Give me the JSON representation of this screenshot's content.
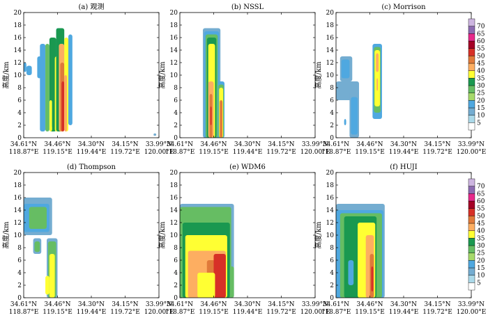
{
  "chart_data": {
    "type": "heatmap",
    "y_axis": {
      "label": "高度/km",
      "range": [
        0,
        20
      ],
      "ticks": [
        0,
        2,
        4,
        6,
        8,
        10,
        12,
        14,
        16,
        18,
        20
      ]
    },
    "x_axis": {
      "ticks_lat": [
        "34.61°N",
        "34.46°N",
        "34.30°N",
        "34.15°N",
        "33.99°N"
      ],
      "ticks_lon": [
        "118.87°E",
        "119.15°E",
        "119.44°E",
        "119.72°E",
        "120.00°E"
      ]
    },
    "colorbar": {
      "levels": [
        5,
        10,
        15,
        20,
        25,
        30,
        35,
        40,
        45,
        50,
        55,
        60,
        65,
        70
      ],
      "colors": [
        "#ffffff",
        "#abd9e9",
        "#74add1",
        "#4fa8e0",
        "#a6d96a",
        "#66bd63",
        "#1a9850",
        "#ffff33",
        "#fdae61",
        "#e07a3a",
        "#d73027",
        "#a50026",
        "#e7298a",
        "#8c6bb1",
        "#cdb5e0"
      ]
    },
    "panels": [
      {
        "title": "(a) 观测",
        "cells": [
          {
            "x": [
              0.0,
              0.02
            ],
            "y": [
              10.5,
              12
            ],
            "level": 15
          },
          {
            "x": [
              0.02,
              0.06
            ],
            "y": [
              10,
              11.5
            ],
            "level": 15
          },
          {
            "x": [
              0.1,
              0.13
            ],
            "y": [
              9.5,
              13
            ],
            "level": 15
          },
          {
            "x": [
              0.12,
              0.16
            ],
            "y": [
              1,
              15
            ],
            "level": 15
          },
          {
            "x": [
              0.16,
              0.19
            ],
            "y": [
              1,
              15
            ],
            "level": 25
          },
          {
            "x": [
              0.19,
              0.24
            ],
            "y": [
              1,
              16
            ],
            "level": 30
          },
          {
            "x": [
              0.24,
              0.26
            ],
            "y": [
              1,
              17.5
            ],
            "level": 15
          },
          {
            "x": [
              0.19,
              0.21
            ],
            "y": [
              1,
              6
            ],
            "level": 35
          },
          {
            "x": [
              0.21,
              0.23
            ],
            "y": [
              1.5,
              12
            ],
            "level": 30
          },
          {
            "x": [
              0.23,
              0.26
            ],
            "y": [
              1,
              13
            ],
            "level": 35
          },
          {
            "x": [
              0.24,
              0.3
            ],
            "y": [
              1,
              17.5
            ],
            "level": 30
          },
          {
            "x": [
              0.26,
              0.3
            ],
            "y": [
              1,
              15
            ],
            "level": 40
          },
          {
            "x": [
              0.27,
              0.3
            ],
            "y": [
              1,
              12
            ],
            "level": 45
          },
          {
            "x": [
              0.28,
              0.3
            ],
            "y": [
              1,
              9
            ],
            "level": 50
          },
          {
            "x": [
              0.3,
              0.33
            ],
            "y": [
              1,
              16
            ],
            "level": 35
          },
          {
            "x": [
              0.3,
              0.32
            ],
            "y": [
              1,
              10
            ],
            "level": 40
          },
          {
            "x": [
              0.33,
              0.36
            ],
            "y": [
              2,
              16.5
            ],
            "level": 15
          },
          {
            "x": [
              0.96,
              0.98
            ],
            "y": [
              0.3,
              0.7
            ],
            "level": 10
          }
        ]
      },
      {
        "title": "(b) NSSL",
        "cells": [
          {
            "x": [
              0.17,
              0.3
            ],
            "y": [
              0,
              17.5
            ],
            "level": 10
          },
          {
            "x": [
              0.18,
              0.29
            ],
            "y": [
              0,
              17
            ],
            "level": 15
          },
          {
            "x": [
              0.19,
              0.28
            ],
            "y": [
              0,
              16.5
            ],
            "level": 25
          },
          {
            "x": [
              0.2,
              0.27
            ],
            "y": [
              0,
              16
            ],
            "level": 30
          },
          {
            "x": [
              0.21,
              0.26
            ],
            "y": [
              0,
              15
            ],
            "level": 35
          },
          {
            "x": [
              0.21,
              0.25
            ],
            "y": [
              0,
              9
            ],
            "level": 40
          },
          {
            "x": [
              0.22,
              0.24
            ],
            "y": [
              0,
              7
            ],
            "level": 45
          },
          {
            "x": [
              0.225,
              0.235
            ],
            "y": [
              2,
              5
            ],
            "level": 50
          },
          {
            "x": [
              0.28,
              0.33
            ],
            "y": [
              0,
              9
            ],
            "level": 15
          },
          {
            "x": [
              0.285,
              0.325
            ],
            "y": [
              0,
              8.5
            ],
            "level": 25
          },
          {
            "x": [
              0.29,
              0.32
            ],
            "y": [
              0,
              8
            ],
            "level": 35
          },
          {
            "x": [
              0.295,
              0.315
            ],
            "y": [
              0,
              6
            ],
            "level": 45
          }
        ]
      },
      {
        "title": "(c) Morrison",
        "cells": [
          {
            "x": [
              0.0,
              0.17
            ],
            "y": [
              6,
              9
            ],
            "level": 10
          },
          {
            "x": [
              0.03,
              0.12
            ],
            "y": [
              9,
              13
            ],
            "level": 10
          },
          {
            "x": [
              0.04,
              0.1
            ],
            "y": [
              9.5,
              12.5
            ],
            "level": 15
          },
          {
            "x": [
              0.1,
              0.17
            ],
            "y": [
              0,
              7.5
            ],
            "level": 10
          },
          {
            "x": [
              0.11,
              0.16
            ],
            "y": [
              0.5,
              6.5
            ],
            "level": 15
          },
          {
            "x": [
              0.06,
              0.075
            ],
            "y": [
              2,
              3
            ],
            "level": 15
          },
          {
            "x": [
              0.27,
              0.34
            ],
            "y": [
              3,
              15
            ],
            "level": 15
          },
          {
            "x": [
              0.28,
              0.33
            ],
            "y": [
              4,
              14.5
            ],
            "level": 25
          },
          {
            "x": [
              0.285,
              0.325
            ],
            "y": [
              5,
              14
            ],
            "level": 35
          },
          {
            "x": [
              0.295,
              0.315
            ],
            "y": [
              10.5,
              13.5
            ],
            "level": 40
          },
          {
            "x": [
              0.3,
              0.31
            ],
            "y": [
              7.5,
              9.5
            ],
            "level": 40
          }
        ]
      },
      {
        "title": "(d) Thompson",
        "cells": [
          {
            "x": [
              0.0,
              0.21
            ],
            "y": [
              10,
              16
            ],
            "level": 10
          },
          {
            "x": [
              0.0,
              0.19
            ],
            "y": [
              10.5,
              15
            ],
            "level": 15
          },
          {
            "x": [
              0.04,
              0.17
            ],
            "y": [
              11,
              14.5
            ],
            "level": 25
          },
          {
            "x": [
              0.07,
              0.13
            ],
            "y": [
              7,
              9.5
            ],
            "level": 10
          },
          {
            "x": [
              0.08,
              0.12
            ],
            "y": [
              7.3,
              9
            ],
            "level": 25
          },
          {
            "x": [
              0.17,
              0.25
            ],
            "y": [
              0,
              9.5
            ],
            "level": 10
          },
          {
            "x": [
              0.18,
              0.24
            ],
            "y": [
              0,
              9
            ],
            "level": 25
          },
          {
            "x": [
              0.19,
              0.23
            ],
            "y": [
              0,
              7
            ],
            "level": 35
          },
          {
            "x": [
              0.165,
              0.185
            ],
            "y": [
              1,
              3
            ],
            "level": 40
          },
          {
            "x": [
              0.16,
              0.19
            ],
            "y": [
              0.5,
              3.5
            ],
            "level": 35
          }
        ]
      },
      {
        "title": "(e) WDM6",
        "cells": [
          {
            "x": [
              0.0,
              0.4
            ],
            "y": [
              0,
              15
            ],
            "level": 10
          },
          {
            "x": [
              0.0,
              0.38
            ],
            "y": [
              0,
              14.5
            ],
            "level": 25
          },
          {
            "x": [
              0.02,
              0.37
            ],
            "y": [
              0,
              12
            ],
            "level": 30
          },
          {
            "x": [
              0.04,
              0.35
            ],
            "y": [
              0,
              10
            ],
            "level": 35
          },
          {
            "x": [
              0.06,
              0.34
            ],
            "y": [
              0,
              7.5
            ],
            "level": 40
          },
          {
            "x": [
              0.2,
              0.26
            ],
            "y": [
              1,
              6
            ],
            "level": 45
          },
          {
            "x": [
              0.25,
              0.34
            ],
            "y": [
              0,
              7
            ],
            "level": 50
          },
          {
            "x": [
              0.13,
              0.26
            ],
            "y": [
              0,
              4
            ],
            "level": 35
          },
          {
            "x": [
              0.37,
              0.4
            ],
            "y": [
              0,
              5
            ],
            "level": 25
          }
        ]
      },
      {
        "title": "(f) HUJI",
        "cells": [
          {
            "x": [
              0.0,
              0.36
            ],
            "y": [
              0,
              15
            ],
            "level": 10
          },
          {
            "x": [
              0.0,
              0.35
            ],
            "y": [
              0,
              14
            ],
            "level": 15
          },
          {
            "x": [
              0.03,
              0.34
            ],
            "y": [
              0,
              13.5
            ],
            "level": 25
          },
          {
            "x": [
              0.06,
              0.3
            ],
            "y": [
              0,
              13
            ],
            "level": 30
          },
          {
            "x": [
              0.16,
              0.29
            ],
            "y": [
              0,
              12
            ],
            "level": 35
          },
          {
            "x": [
              0.22,
              0.28
            ],
            "y": [
              0,
              10
            ],
            "level": 40
          },
          {
            "x": [
              0.25,
              0.28
            ],
            "y": [
              0,
              7
            ],
            "level": 45
          },
          {
            "x": [
              0.26,
              0.275
            ],
            "y": [
              1,
              5
            ],
            "level": 50
          },
          {
            "x": [
              0.09,
              0.13
            ],
            "y": [
              2,
              6
            ],
            "level": 15
          }
        ]
      }
    ]
  }
}
